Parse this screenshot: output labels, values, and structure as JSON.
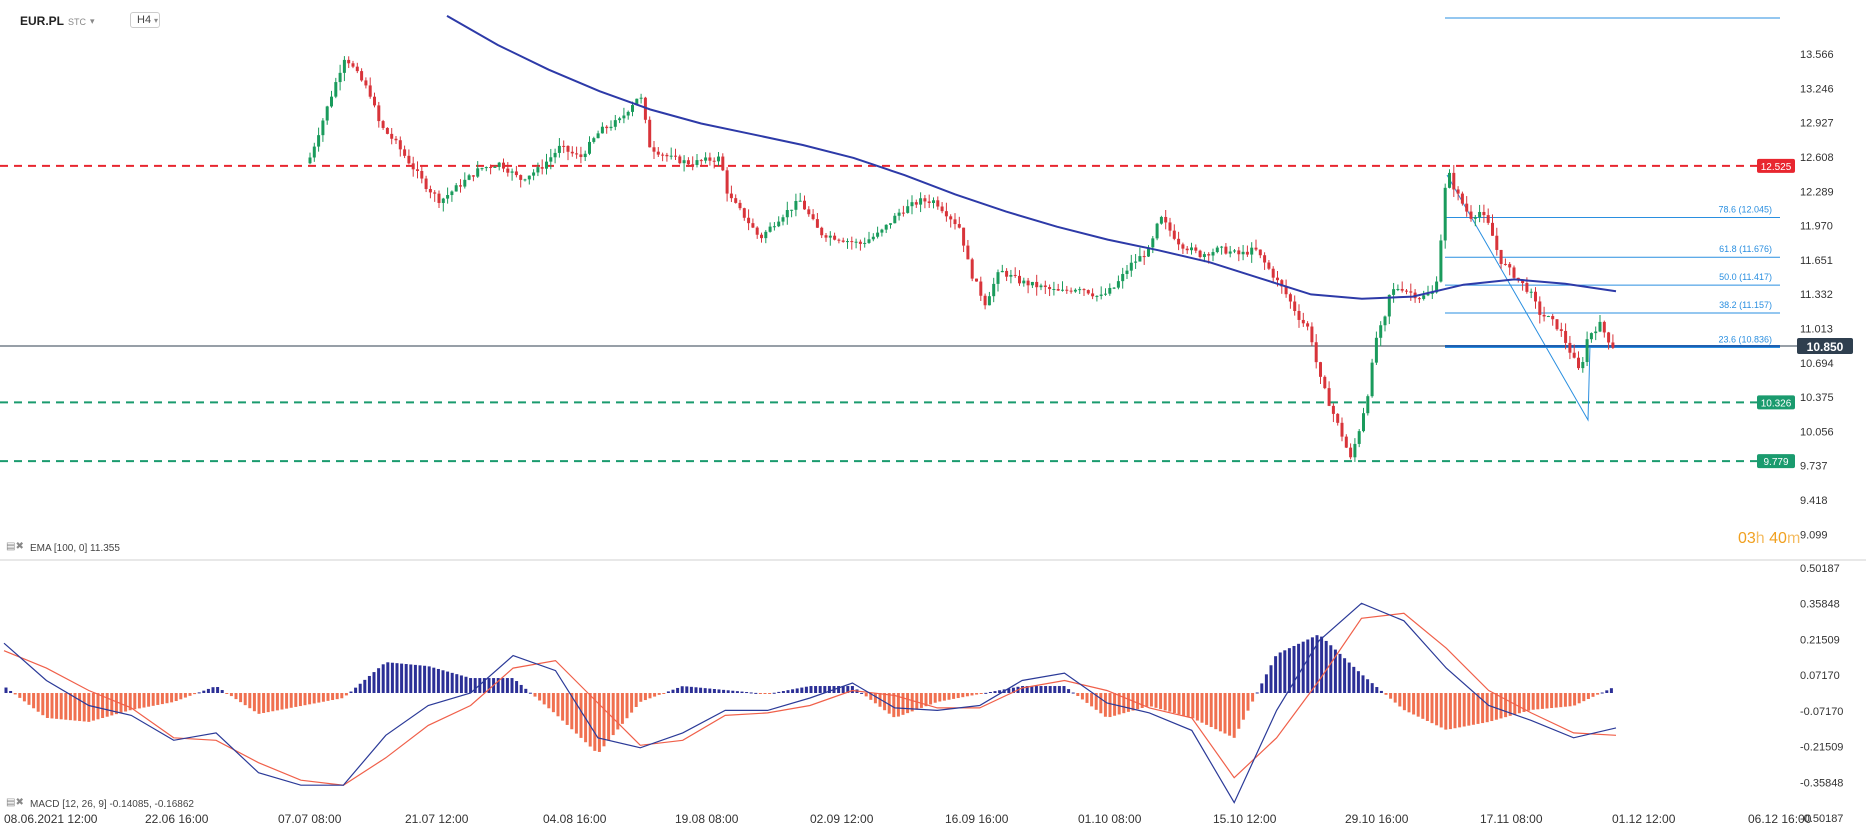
{
  "header": {
    "symbol": "EUR.PL",
    "subtitle": "STC",
    "timeframe": "H4"
  },
  "timer": {
    "hours": "03",
    "h_unit": "h",
    "minutes": "40",
    "m_unit": "m"
  },
  "indicators": {
    "ema_label": "EMA [100, 0] 11.355",
    "macd_label": "MACD [12, 26, 9] -0.14085, -0.16862"
  },
  "colors": {
    "up": "#1a9b5c",
    "down": "#d8343a",
    "ema": "#2d3aa8",
    "resistance": "#e8262f",
    "support": "#1a9b6e",
    "fib": "#2a8fe0",
    "price": "#2f3f4f",
    "macd_hist_pos": "#2b2f96",
    "macd_hist_neg": "#f07050",
    "macd_line": "#2b3a98",
    "signal_line": "#f0604a"
  },
  "chart_data": [
    {
      "type": "candlestick",
      "title": "",
      "ylim": [
        9.099,
        13.885
      ],
      "y_ticks": [
        13.566,
        13.246,
        12.927,
        12.608,
        12.289,
        11.97,
        11.651,
        11.332,
        11.013,
        10.694,
        10.375,
        10.056,
        9.737,
        9.418,
        9.099
      ],
      "x_tick_labels": [
        "08.06.2021 12:00",
        "22.06 16:00",
        "07.07 08:00",
        "21.07 12:00",
        "04.08 16:00",
        "19.08 08:00",
        "02.09 12:00",
        "16.09 16:00",
        "01.10 08:00",
        "15.10 12:00",
        "29.10 16:00",
        "17.11 08:00",
        "01.12 12:00",
        "06.12 16:00"
      ],
      "price": {
        "last": 10.85,
        "label": "10.850"
      },
      "levels": [
        {
          "value": 12.525,
          "label": "12.525",
          "color": "#e8262f",
          "style": "dashed"
        },
        {
          "value": 10.326,
          "label": "10.326",
          "color": "#1a9b6e",
          "style": "dashed"
        },
        {
          "value": 9.779,
          "label": "9.779",
          "color": "#1a9b6e",
          "style": "dashed"
        }
      ],
      "fibonacci": [
        {
          "ratio": "78.6",
          "value": 12.045,
          "label": "78.6 (12.045)"
        },
        {
          "ratio": "61.8",
          "value": 11.676,
          "label": "61.8 (11.676)"
        },
        {
          "ratio": "50.0",
          "value": 11.417,
          "label": "50.0 (11.417)"
        },
        {
          "ratio": "38.2",
          "value": 11.157,
          "label": "38.2 (11.157)"
        },
        {
          "ratio": "23.6",
          "value": 10.836,
          "label": "23.6 (10.836)"
        }
      ],
      "ema": [
        13.92,
        13.65,
        13.42,
        13.22,
        13.05,
        12.92,
        12.82,
        12.72,
        12.6,
        12.44,
        12.26,
        12.1,
        11.96,
        11.84,
        11.74,
        11.63,
        11.48,
        11.33,
        11.29,
        11.31,
        11.42,
        11.47,
        11.43,
        11.36
      ]
    },
    {
      "type": "macd",
      "ylim": [
        -0.50187,
        0.50187
      ],
      "y_ticks": [
        0.50187,
        0.35848,
        0.21509,
        0.0717,
        -0.0717,
        -0.21509,
        -0.35848,
        -0.50187
      ],
      "macd": [
        0.2,
        0.05,
        -0.05,
        -0.09,
        -0.19,
        -0.16,
        -0.32,
        -0.37,
        -0.37,
        -0.17,
        -0.05,
        0.0,
        0.15,
        0.09,
        -0.18,
        -0.22,
        -0.16,
        -0.07,
        -0.07,
        -0.02,
        0.04,
        -0.06,
        -0.07,
        -0.05,
        0.05,
        0.08,
        -0.04,
        -0.08,
        -0.15,
        -0.44,
        -0.07,
        0.21,
        0.36,
        0.29,
        0.1,
        -0.05,
        -0.11,
        -0.18,
        -0.14
      ],
      "signal": [
        0.17,
        0.1,
        0.01,
        -0.06,
        -0.18,
        -0.19,
        -0.28,
        -0.35,
        -0.37,
        -0.26,
        -0.13,
        -0.05,
        0.1,
        0.13,
        -0.04,
        -0.21,
        -0.19,
        -0.09,
        -0.08,
        -0.05,
        0.01,
        -0.01,
        -0.06,
        -0.06,
        0.02,
        0.05,
        0.01,
        -0.06,
        -0.1,
        -0.34,
        -0.18,
        0.05,
        0.3,
        0.32,
        0.18,
        0.01,
        -0.08,
        -0.16,
        -0.17
      ]
    }
  ]
}
